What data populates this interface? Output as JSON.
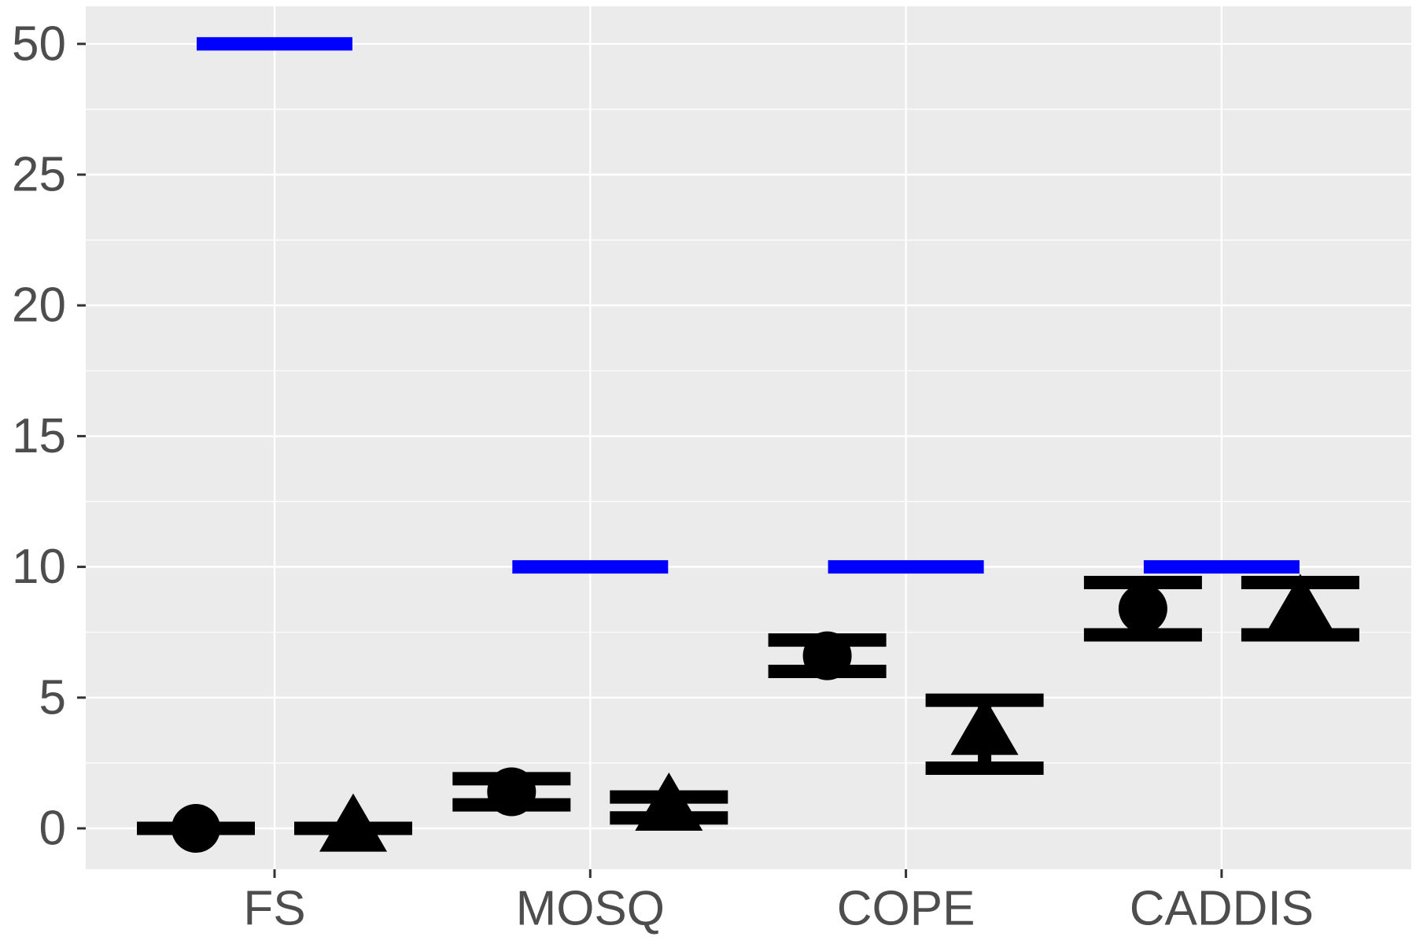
{
  "chart_data": {
    "type": "scatter",
    "title": "",
    "xlabel": "",
    "ylabel": "",
    "categories": [
      "FS",
      "MOSQ",
      "COPE",
      "CADDIS"
    ],
    "y_tick_labels": [
      "0",
      "5",
      "10",
      "15",
      "20",
      "25",
      "50"
    ],
    "y_tick_values": [
      0,
      5,
      10,
      15,
      20,
      25,
      50
    ],
    "y_axis_note": "axis break between 25 and 50; 50 drawn at one step above 25",
    "grid": true,
    "legend": "none",
    "colors": {
      "panel_background": "#ebebeb",
      "grid": "#ffffff",
      "points": "#000000",
      "reference_line": "#0000ff",
      "tick_label": "#4d4d4d"
    },
    "reference_lines": [
      {
        "category": "FS",
        "value": 50
      },
      {
        "category": "MOSQ",
        "value": 10
      },
      {
        "category": "COPE",
        "value": 10
      },
      {
        "category": "CADDIS",
        "value": 10
      }
    ],
    "series": [
      {
        "marker": "circle",
        "points": [
          {
            "category": "FS",
            "y": 0.0,
            "low": 0.0,
            "high": 0.0
          },
          {
            "category": "MOSQ",
            "y": 1.4,
            "low": 0.9,
            "high": 1.9
          },
          {
            "category": "COPE",
            "y": 6.6,
            "low": 6.0,
            "high": 7.2
          },
          {
            "category": "CADDIS",
            "y": 8.4,
            "low": 7.4,
            "high": 9.4
          }
        ]
      },
      {
        "marker": "triangle",
        "points": [
          {
            "category": "FS",
            "y": 0.0,
            "low": 0.0,
            "high": 0.0
          },
          {
            "category": "MOSQ",
            "y": 0.8,
            "low": 0.4,
            "high": 1.2
          },
          {
            "category": "COPE",
            "y": 3.7,
            "low": 2.3,
            "high": 4.9
          },
          {
            "category": "CADDIS",
            "y": 8.4,
            "low": 7.4,
            "high": 9.4
          }
        ]
      }
    ]
  }
}
